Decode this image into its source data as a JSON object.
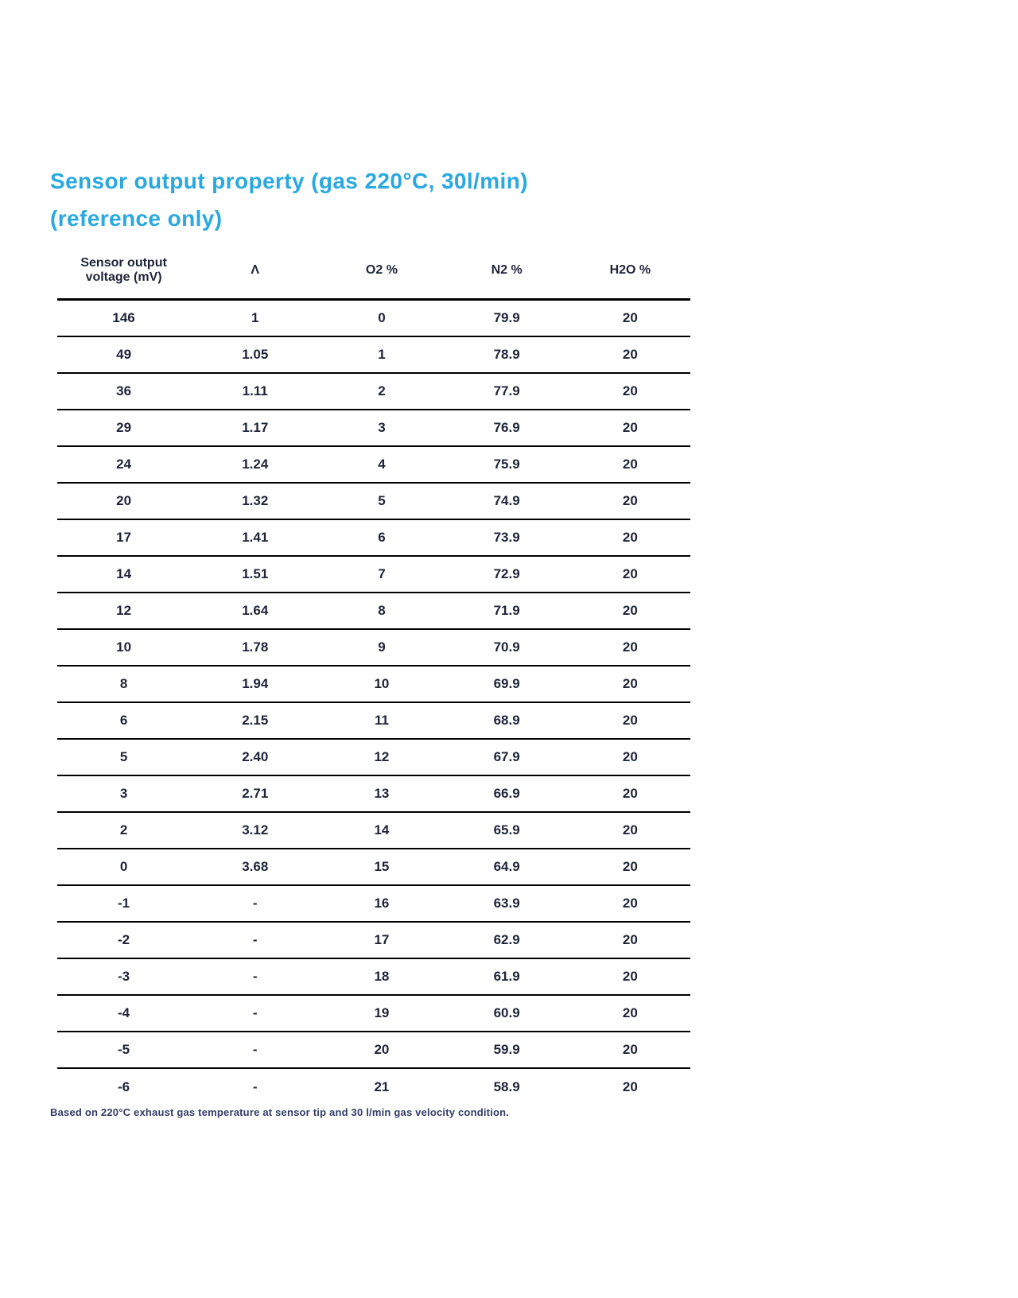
{
  "title": {
    "line1": "Sensor output property (gas 220°C, 30l/min)",
    "line2": "(reference only)"
  },
  "table": {
    "columns": [
      "Sensor output\nvoltage (mV)",
      "Λ",
      "O2 %",
      "N2 %",
      "H2O %"
    ],
    "rows": [
      [
        "146",
        "1",
        "0",
        "79.9",
        "20"
      ],
      [
        "49",
        "1.05",
        "1",
        "78.9",
        "20"
      ],
      [
        "36",
        "1.11",
        "2",
        "77.9",
        "20"
      ],
      [
        "29",
        "1.17",
        "3",
        "76.9",
        "20"
      ],
      [
        "24",
        "1.24",
        "4",
        "75.9",
        "20"
      ],
      [
        "20",
        "1.32",
        "5",
        "74.9",
        "20"
      ],
      [
        "17",
        "1.41",
        "6",
        "73.9",
        "20"
      ],
      [
        "14",
        "1.51",
        "7",
        "72.9",
        "20"
      ],
      [
        "12",
        "1.64",
        "8",
        "71.9",
        "20"
      ],
      [
        "10",
        "1.78",
        "9",
        "70.9",
        "20"
      ],
      [
        "8",
        "1.94",
        "10",
        "69.9",
        "20"
      ],
      [
        "6",
        "2.15",
        "11",
        "68.9",
        "20"
      ],
      [
        "5",
        "2.40",
        "12",
        "67.9",
        "20"
      ],
      [
        "3",
        "2.71",
        "13",
        "66.9",
        "20"
      ],
      [
        "2",
        "3.12",
        "14",
        "65.9",
        "20"
      ],
      [
        "0",
        "3.68",
        "15",
        "64.9",
        "20"
      ],
      [
        "-1",
        "-",
        "16",
        "63.9",
        "20"
      ],
      [
        "-2",
        "-",
        "17",
        "62.9",
        "20"
      ],
      [
        "-3",
        "-",
        "18",
        "61.9",
        "20"
      ],
      [
        "-4",
        "-",
        "19",
        "60.9",
        "20"
      ],
      [
        "-5",
        "-",
        "20",
        "59.9",
        "20"
      ],
      [
        "-6",
        "-",
        "21",
        "58.9",
        "20"
      ]
    ]
  },
  "footnote": "Based on 220°C exhaust gas temperature at sensor tip and 30 l/min gas velocity condition.",
  "colors": {
    "title_accent": "#29a9e0",
    "table_text": "#1e2438",
    "rule": "#000000",
    "footnote_text": "#333b66"
  }
}
